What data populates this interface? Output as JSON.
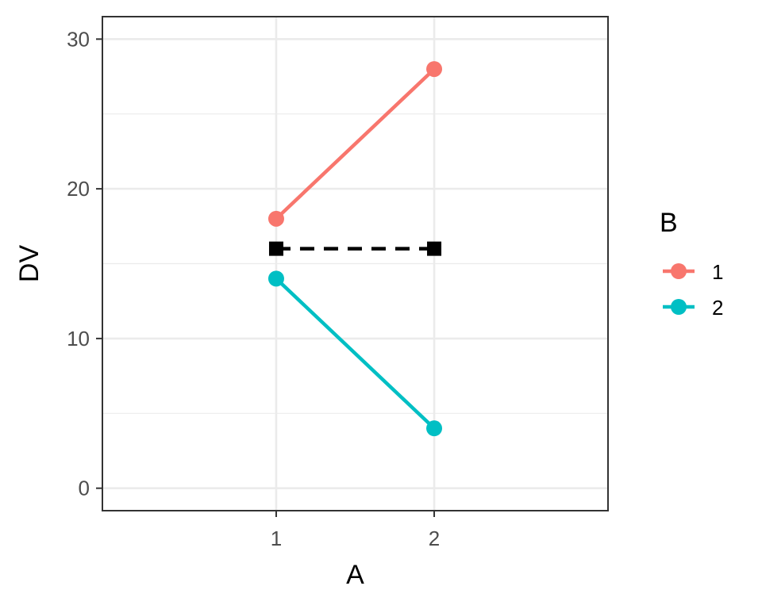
{
  "chart_data": {
    "type": "line",
    "title": "",
    "xlabel": "A",
    "ylabel": "DV",
    "categories": [
      "1",
      "2"
    ],
    "ylim": [
      -1.5,
      31.5
    ],
    "yticks": [
      0,
      10,
      20,
      30
    ],
    "grid": true,
    "legend": {
      "title": "B",
      "placement": "right",
      "entries": [
        "1",
        "2"
      ]
    },
    "series": [
      {
        "name": "1",
        "values": [
          18,
          28
        ],
        "color": "#F8766D",
        "line": "solid",
        "marker": "circle"
      },
      {
        "name": "2",
        "values": [
          14,
          4
        ],
        "color": "#00BFC4",
        "line": "solid",
        "marker": "circle"
      },
      {
        "values": [
          16,
          16
        ],
        "color": "#000000",
        "line": "dashed",
        "marker": "square"
      }
    ]
  }
}
